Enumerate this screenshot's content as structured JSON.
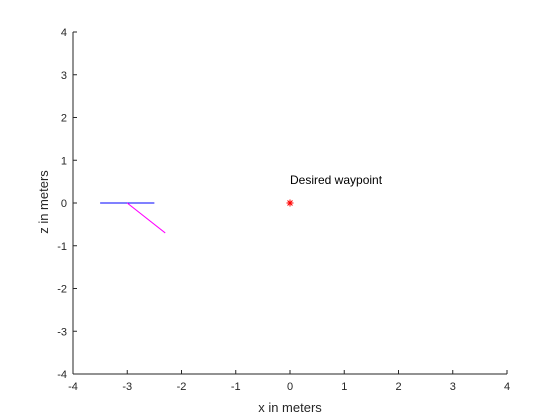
{
  "chart_data": {
    "type": "line",
    "title": "",
    "xlabel": "x in meters",
    "ylabel": "z in meters",
    "xlim": [
      -4,
      4
    ],
    "ylim": [
      -4,
      4
    ],
    "xticks": [
      -4,
      -3,
      -2,
      -1,
      0,
      1,
      2,
      3,
      4
    ],
    "yticks": [
      -4,
      -3,
      -2,
      -1,
      0,
      1,
      2,
      3,
      4
    ],
    "xtick_labels": [
      "-4",
      "-3",
      "-2",
      "-1",
      "0",
      "1",
      "2",
      "3",
      "4"
    ],
    "ytick_labels": [
      "-4",
      "-3",
      "-2",
      "-1",
      "0",
      "1",
      "2",
      "3",
      "4"
    ],
    "grid": false,
    "series": [
      {
        "color": "#0000ff",
        "x": [
          -3.5,
          -2.5
        ],
        "y": [
          0,
          0
        ]
      },
      {
        "color": "#ff00ff",
        "x": [
          -3.0,
          -2.3
        ],
        "y": [
          0,
          -0.7
        ]
      }
    ],
    "markers": [
      {
        "x": 0,
        "y": 0,
        "symbol": "asterisk",
        "color": "#ff0000"
      }
    ],
    "annotations": [
      {
        "text": "Desired waypoint",
        "x": 0,
        "y": 0.4
      }
    ]
  }
}
